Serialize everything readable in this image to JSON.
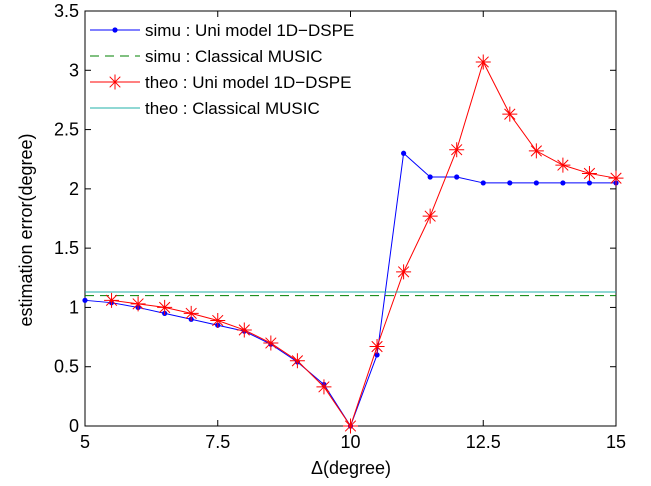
{
  "chart_data": {
    "type": "line",
    "title": "",
    "xlabel": "Δ(degree)",
    "ylabel": "estimation error(degree)",
    "xlim": [
      5,
      15
    ],
    "ylim": [
      0,
      3.5
    ],
    "xticks": [
      5,
      7.5,
      10,
      12.5,
      15
    ],
    "xtick_labels": [
      "5",
      "7.5",
      "10",
      "12.5",
      "15"
    ],
    "yticks": [
      0,
      0.5,
      1,
      1.5,
      2,
      2.5,
      3,
      3.5
    ],
    "ytick_labels": [
      "0",
      "0.5",
      "1",
      "1.5",
      "2",
      "2.5",
      "3",
      "3.5"
    ],
    "grid": false,
    "legend_position": "top-left",
    "series": [
      {
        "name": "simu : Uni model 1D−DSPE",
        "color": "#0000ff",
        "style": "solid",
        "marker": "dot",
        "x": [
          5,
          5.5,
          6,
          6.5,
          7,
          7.5,
          8,
          8.5,
          9,
          9.5,
          10,
          10.5,
          11,
          11.5,
          12,
          12.5,
          13,
          13.5,
          14,
          14.5,
          15
        ],
        "y": [
          1.06,
          1.04,
          1.0,
          0.95,
          0.9,
          0.85,
          0.8,
          0.69,
          0.54,
          0.35,
          0.0,
          0.6,
          2.3,
          2.1,
          2.1,
          2.05,
          2.05,
          2.05,
          2.05,
          2.05,
          2.05
        ]
      },
      {
        "name": "simu : Classical MUSIC",
        "color": "#008000",
        "style": "dashed",
        "marker": "none",
        "x": [
          5,
          15
        ],
        "y": [
          1.1,
          1.1
        ]
      },
      {
        "name": "theo : Uni model 1D−DSPE",
        "color": "#ff0000",
        "style": "solid",
        "marker": "star",
        "x": [
          5.5,
          6,
          6.5,
          7,
          7.5,
          8,
          8.5,
          9,
          9.5,
          10,
          10.5,
          11,
          11.5,
          12,
          12.5,
          13,
          13.5,
          14,
          14.5,
          15
        ],
        "y": [
          1.06,
          1.03,
          1.0,
          0.95,
          0.89,
          0.81,
          0.7,
          0.55,
          0.33,
          0.0,
          0.67,
          1.3,
          1.77,
          2.33,
          3.07,
          2.63,
          2.32,
          2.2,
          2.13,
          2.09
        ]
      },
      {
        "name": "theo : Classical MUSIC",
        "color": "#20b2aa",
        "style": "solid",
        "marker": "none",
        "x": [
          5,
          15
        ],
        "y": [
          1.13,
          1.13
        ]
      }
    ]
  }
}
